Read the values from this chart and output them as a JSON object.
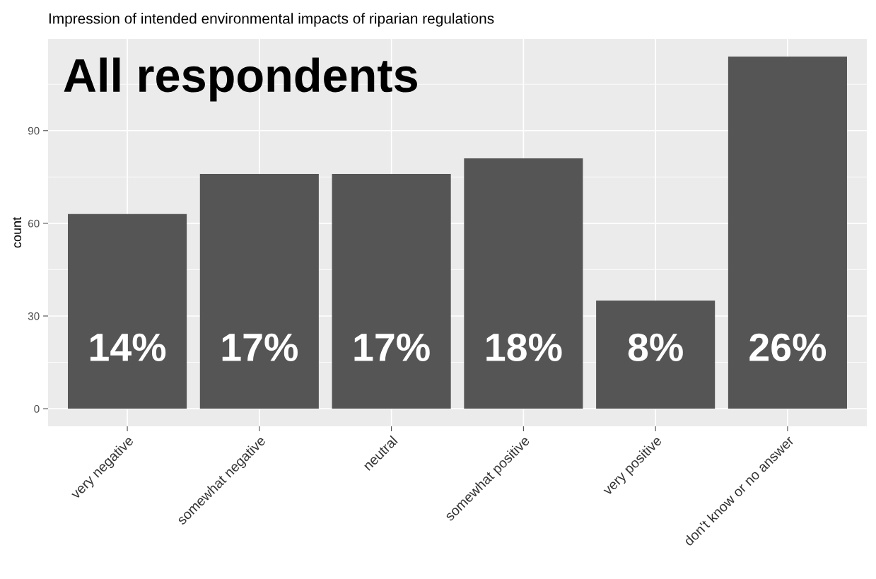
{
  "chart_data": {
    "type": "bar",
    "title": "Impression of intended environmental impacts of riparian regulations",
    "ylabel": "count",
    "categories": [
      "very negative",
      "somewhat negative",
      "neutral",
      "somewhat positive",
      "very positive",
      "don't know or no answer"
    ],
    "values": [
      63,
      76,
      76,
      81,
      35,
      114
    ],
    "color": "#555555",
    "annotations": [
      "All respondents",
      "14%",
      "17%",
      "17%",
      "18%",
      "8%",
      "26%"
    ],
    "ylim": [
      -5.7,
      119.7
    ],
    "yticks": [
      0,
      30,
      60,
      90
    ],
    "grid": true
  }
}
